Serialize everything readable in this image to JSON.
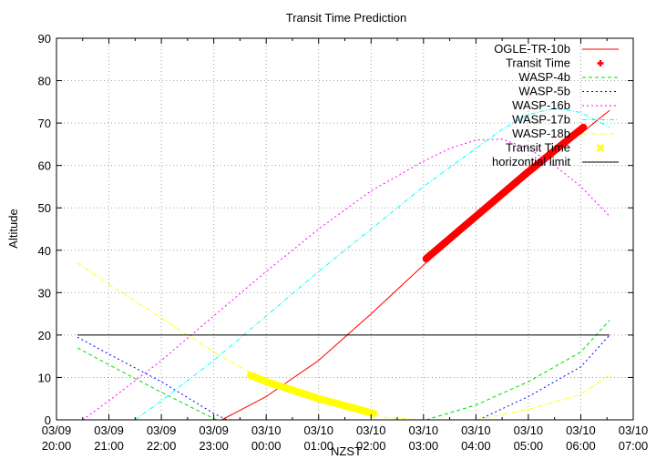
{
  "chart_data": {
    "type": "line",
    "title": "Transit Time Prediction",
    "xlabel": "NZST",
    "ylabel": "Altitude",
    "ylim": [
      0,
      90
    ],
    "yticks": [
      0,
      10,
      20,
      30,
      40,
      50,
      60,
      70,
      80,
      90
    ],
    "xlim_hours": [
      0,
      11
    ],
    "xticks": [
      {
        "h": 0,
        "date": "03/09",
        "time": "20:00"
      },
      {
        "h": 1,
        "date": "03/09",
        "time": "21:00"
      },
      {
        "h": 2,
        "date": "03/09",
        "time": "22:00"
      },
      {
        "h": 3,
        "date": "03/09",
        "time": "23:00"
      },
      {
        "h": 4,
        "date": "03/10",
        "time": "00:00"
      },
      {
        "h": 5,
        "date": "03/10",
        "time": "01:00"
      },
      {
        "h": 6,
        "date": "03/10",
        "time": "02:00"
      },
      {
        "h": 7,
        "date": "03/10",
        "time": "03:00"
      },
      {
        "h": 8,
        "date": "03/10",
        "time": "04:00"
      },
      {
        "h": 9,
        "date": "03/10",
        "time": "05:00"
      },
      {
        "h": 10,
        "date": "03/10",
        "time": "06:00"
      },
      {
        "h": 11,
        "date": "03/10",
        "time": "07:00"
      }
    ],
    "grid": true,
    "legend_position": "top-right",
    "series": [
      {
        "name": "OGLE-TR-10b",
        "color": "#ff0000",
        "style": "solid",
        "width": 1,
        "points": [
          [
            3.15,
            0
          ],
          [
            4,
            5.5
          ],
          [
            5,
            14
          ],
          [
            6,
            25
          ],
          [
            7,
            36.5
          ],
          [
            8,
            48
          ],
          [
            9,
            58.5
          ],
          [
            10,
            67.5
          ],
          [
            10.55,
            73
          ]
        ]
      },
      {
        "name": "Transit Time",
        "color": "#ff0000",
        "style": "marker-thick",
        "width": 8,
        "points": [
          [
            7.05,
            38
          ],
          [
            8,
            48
          ],
          [
            9,
            58.5
          ],
          [
            10.05,
            69
          ]
        ]
      },
      {
        "name": "WASP-4b",
        "color": "#00dd00",
        "style": "dashed",
        "width": 1,
        "points": [
          [
            0.4,
            17
          ],
          [
            1,
            13
          ],
          [
            2,
            6.5
          ],
          [
            3,
            0.3
          ],
          [
            3.05,
            0
          ]
        ],
        "points2": [
          [
            7.05,
            0
          ],
          [
            8,
            3.5
          ],
          [
            9,
            9
          ],
          [
            10,
            16
          ],
          [
            10.55,
            23.5
          ]
        ]
      },
      {
        "name": "WASP-5b",
        "color": "#0000ff",
        "style": "dotted",
        "width": 1,
        "points": [
          [
            0.4,
            19.5
          ],
          [
            1,
            15.5
          ],
          [
            2,
            9
          ],
          [
            3,
            1.5
          ],
          [
            3.25,
            0
          ]
        ],
        "points2": [
          [
            8.05,
            0
          ],
          [
            9,
            5.5
          ],
          [
            10,
            12.5
          ],
          [
            10.55,
            20
          ]
        ]
      },
      {
        "name": "WASP-16b",
        "color": "#ff00ff",
        "style": "dotted",
        "width": 1,
        "points": [
          [
            0.5,
            0
          ],
          [
            1,
            4.5
          ],
          [
            2,
            14
          ],
          [
            3,
            24.5
          ],
          [
            4,
            35
          ],
          [
            5,
            45
          ],
          [
            6,
            54
          ],
          [
            7,
            61
          ],
          [
            7.5,
            64
          ],
          [
            8,
            66
          ],
          [
            8.5,
            66.2
          ],
          [
            9,
            64
          ],
          [
            9.5,
            60
          ],
          [
            10,
            55
          ],
          [
            10.55,
            48
          ]
        ]
      },
      {
        "name": "WASP-17b",
        "color": "#00ffff",
        "style": "dashdot",
        "width": 1,
        "points": [
          [
            1.5,
            0
          ],
          [
            2,
            4.5
          ],
          [
            3,
            14
          ],
          [
            4,
            24.5
          ],
          [
            5,
            35
          ],
          [
            6,
            45
          ],
          [
            7,
            55
          ],
          [
            8,
            64
          ],
          [
            8.5,
            68.5
          ],
          [
            9,
            72
          ],
          [
            9.5,
            73.5
          ],
          [
            10,
            72.5
          ],
          [
            10.55,
            69
          ]
        ]
      },
      {
        "name": "WASP-18b",
        "color": "#ffff00",
        "style": "dashdot",
        "width": 1,
        "points": [
          [
            0.4,
            37
          ],
          [
            1,
            32
          ],
          [
            2,
            24
          ],
          [
            3,
            16
          ],
          [
            3.5,
            12.5
          ],
          [
            4,
            9
          ],
          [
            5,
            5
          ],
          [
            6,
            1.5
          ],
          [
            6.3,
            0.5
          ],
          [
            7,
            0
          ]
        ],
        "points2": [
          [
            8,
            0
          ],
          [
            9,
            2.5
          ],
          [
            10,
            6
          ],
          [
            10.55,
            10.5
          ]
        ]
      },
      {
        "name": "Transit Time",
        "color": "#ffff00",
        "style": "marker-thick",
        "width": 8,
        "points": [
          [
            3.7,
            10.5
          ],
          [
            4,
            9
          ],
          [
            5,
            5
          ],
          [
            5.6,
            3
          ],
          [
            6.05,
            1.5
          ]
        ]
      },
      {
        "name": "horizontial limit",
        "color": "#000000",
        "style": "solid",
        "width": 1,
        "points": [
          [
            0.4,
            20
          ],
          [
            10.55,
            20
          ]
        ]
      }
    ]
  },
  "legend": [
    {
      "label": "OGLE-TR-10b",
      "color": "#ff0000",
      "kind": "line-solid"
    },
    {
      "label": "Transit Time",
      "color": "#ff0000",
      "kind": "plus"
    },
    {
      "label": "WASP-4b",
      "color": "#00dd00",
      "kind": "line-dashed"
    },
    {
      "label": "WASP-5b",
      "color": "#0000ff",
      "kind": "line-dotted"
    },
    {
      "label": "WASP-16b",
      "color": "#ff00ff",
      "kind": "line-dotted"
    },
    {
      "label": "WASP-17b",
      "color": "#00ffff",
      "kind": "line-dashdot"
    },
    {
      "label": "WASP-18b",
      "color": "#ffff00",
      "kind": "line-dashdot"
    },
    {
      "label": "Transit Time",
      "color": "#ffff00",
      "kind": "cross"
    },
    {
      "label": "horizontial limit",
      "color": "#000000",
      "kind": "line-solid"
    }
  ]
}
